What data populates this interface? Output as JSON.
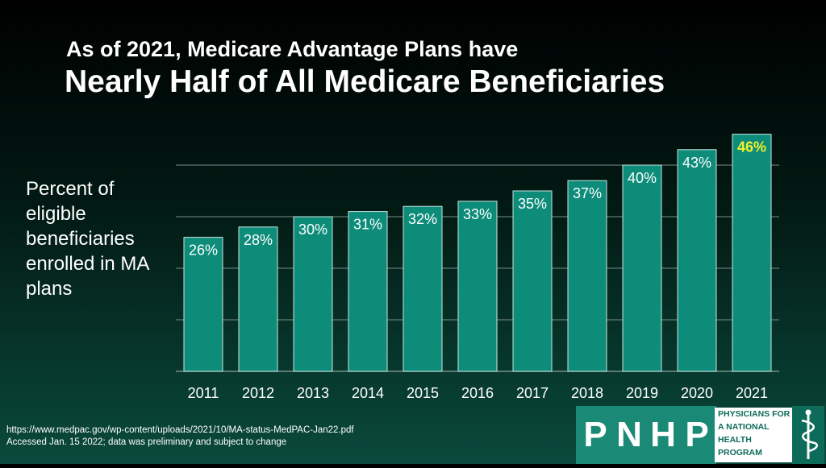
{
  "header": {
    "subtitle": "As of 2021, Medicare Advantage Plans have",
    "title": "Nearly Half of All Medicare Beneficiaries"
  },
  "y_label": "Percent of eligible beneficiaries enrolled in MA plans",
  "chart_data": {
    "type": "bar",
    "title": "Nearly Half of All Medicare Beneficiaries",
    "ylabel": "Percent of eligible beneficiaries enrolled in MA plans",
    "xlabel": "",
    "categories": [
      "2011",
      "2012",
      "2013",
      "2014",
      "2015",
      "2016",
      "2017",
      "2018",
      "2019",
      "2020",
      "2021"
    ],
    "values": [
      26,
      28,
      30,
      31,
      32,
      33,
      35,
      37,
      40,
      43,
      46
    ],
    "labels": [
      "26%",
      "28%",
      "30%",
      "31%",
      "32%",
      "33%",
      "35%",
      "37%",
      "40%",
      "43%",
      "46%"
    ],
    "highlight_index": 10,
    "ylim": [
      0,
      50
    ],
    "grid": true,
    "colors": {
      "bar": "#0e8c7a",
      "bar_stroke": "#c8e6e0",
      "grid": "#7a8c88",
      "label": "#ffffff",
      "highlight_label": "#f2f22a"
    }
  },
  "source": {
    "url": "https://www.medpac.gov/wp-content/uploads/2021/10/MA-status-MedPAC-Jan22.pdf",
    "note": "Accessed Jan. 15 2022; data was preliminary and subject to change"
  },
  "logo": {
    "letters": [
      "P",
      "N",
      "H",
      "P"
    ],
    "line1": "PHYSICIANS FOR",
    "line2": "A NATIONAL",
    "line3": "HEALTH",
    "line4": "PROGRAM"
  }
}
